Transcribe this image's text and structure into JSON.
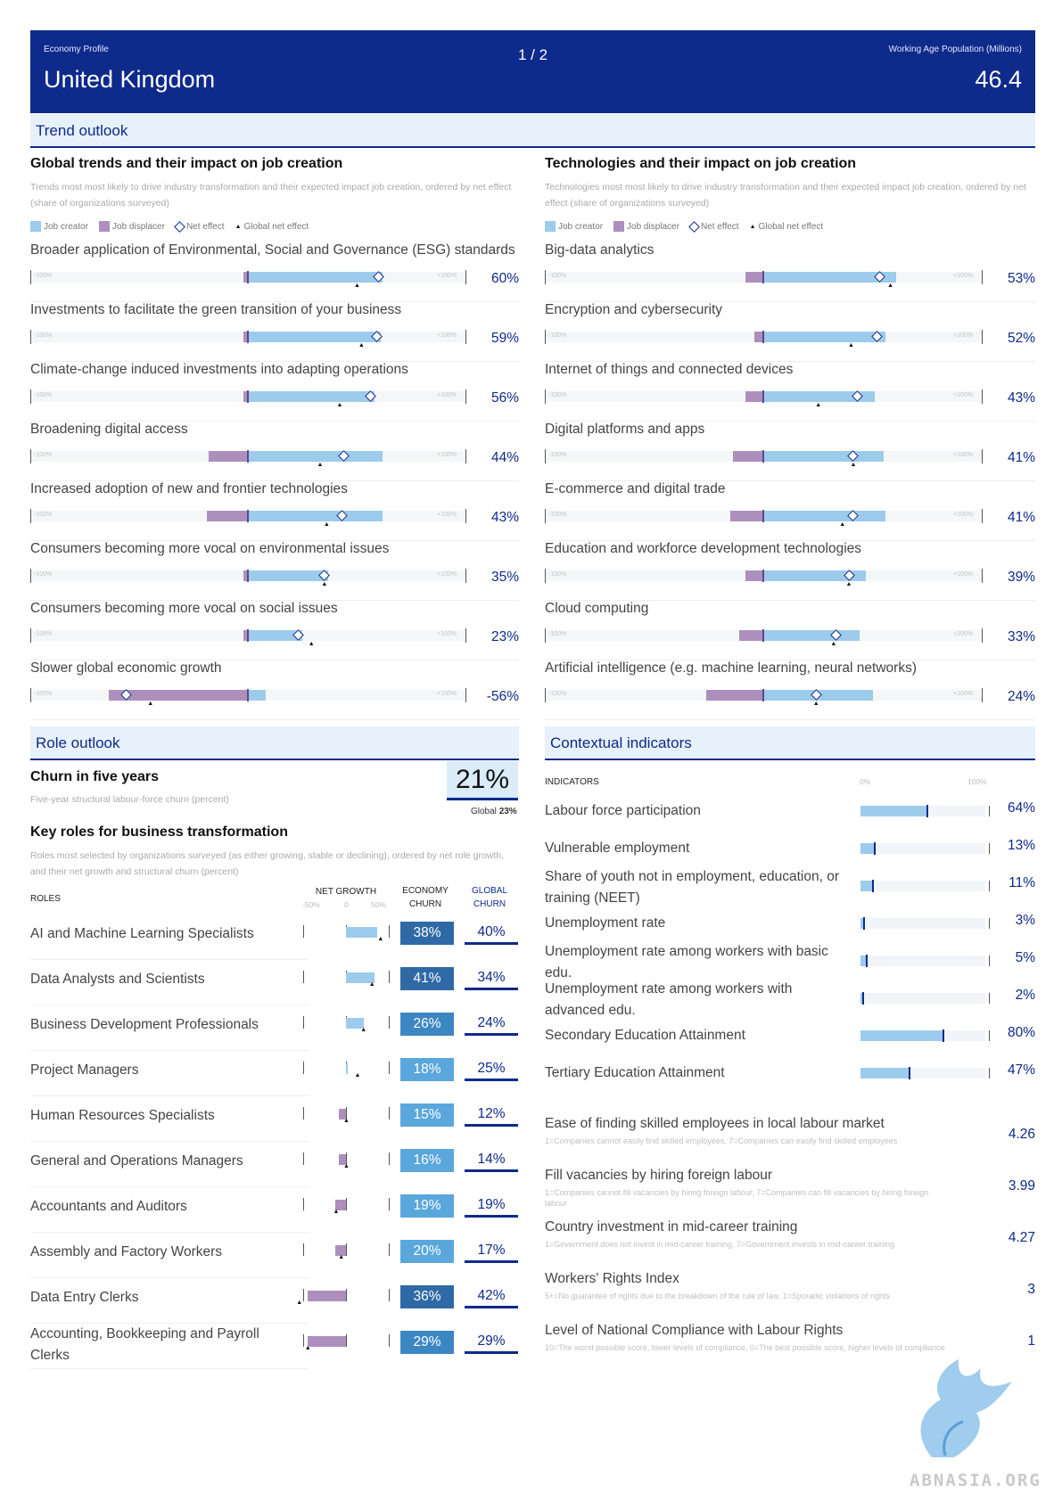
{
  "header": {
    "eyebrow_left": "Economy Profile",
    "country": "United Kingdom",
    "page": "1 / 2",
    "eyebrow_right": "Working Age Population (Millions)",
    "population": "46.4"
  },
  "trend_outlook": {
    "title": "Trend outlook"
  },
  "legend": {
    "creator": "Job creator",
    "displacer": "Job displacer",
    "net": "Net effect",
    "global": "Global net effect"
  },
  "axis": {
    "min": "-100%",
    "max": "+100%"
  },
  "trends": {
    "title": "Global trends and their impact on job creation",
    "subtitle": "Trends most most likely to drive industry transformation and their expected impact job creation, ordered by net effect (share of organizations surveyed)",
    "items": [
      {
        "label": "Broader application of Environmental, Social and Governance (ESG) standards",
        "value": "60%",
        "displacer": 0.02,
        "creator": 0.62,
        "net": 0.6,
        "global": 0.5
      },
      {
        "label": "Investments to facilitate the green transition of your business",
        "value": "59%",
        "displacer": 0.02,
        "creator": 0.61,
        "net": 0.59,
        "global": 0.52
      },
      {
        "label": "Climate-change induced investments into adapting operations",
        "value": "56%",
        "displacer": 0.02,
        "creator": 0.58,
        "net": 0.56,
        "global": 0.42
      },
      {
        "label": "Broadening digital access",
        "value": "44%",
        "displacer": 0.18,
        "creator": 0.62,
        "net": 0.44,
        "global": 0.33
      },
      {
        "label": "Increased adoption of new and frontier technologies",
        "value": "43%",
        "displacer": 0.19,
        "creator": 0.62,
        "net": 0.43,
        "global": 0.36
      },
      {
        "label": "Consumers becoming more vocal on environmental issues",
        "value": "35%",
        "displacer": 0.02,
        "creator": 0.37,
        "net": 0.35,
        "global": 0.35
      },
      {
        "label": "Consumers becoming more vocal on social issues",
        "value": "23%",
        "displacer": 0.02,
        "creator": 0.25,
        "net": 0.23,
        "global": 0.29
      },
      {
        "label": "Slower global economic growth",
        "value": "-56%",
        "displacer": 0.64,
        "creator": 0.08,
        "net": -0.56,
        "global": -0.45
      }
    ]
  },
  "technologies": {
    "title": "Technologies and their impact on job creation",
    "subtitle": "Technologies most most likely to drive industry transformation and their expected impact job creation, ordered by net effect (share of organizations surveyed)",
    "items": [
      {
        "label": "Big-data analytics",
        "value": "53%",
        "displacer": 0.08,
        "creator": 0.61,
        "net": 0.53,
        "global": 0.58
      },
      {
        "label": "Encryption and cybersecurity",
        "value": "52%",
        "displacer": 0.04,
        "creator": 0.56,
        "net": 0.52,
        "global": 0.4
      },
      {
        "label": "Internet of things and connected devices",
        "value": "43%",
        "displacer": 0.08,
        "creator": 0.51,
        "net": 0.43,
        "global": 0.25
      },
      {
        "label": "Digital platforms and apps",
        "value": "41%",
        "displacer": 0.14,
        "creator": 0.55,
        "net": 0.41,
        "global": 0.41
      },
      {
        "label": "E-commerce and digital trade",
        "value": "41%",
        "displacer": 0.15,
        "creator": 0.56,
        "net": 0.41,
        "global": 0.36
      },
      {
        "label": "Education and workforce development technologies",
        "value": "39%",
        "displacer": 0.08,
        "creator": 0.47,
        "net": 0.39,
        "global": 0.39
      },
      {
        "label": "Cloud computing",
        "value": "33%",
        "displacer": 0.11,
        "creator": 0.44,
        "net": 0.33,
        "global": 0.32
      },
      {
        "label": "Artificial intelligence (e.g. machine learning, neural networks)",
        "value": "24%",
        "displacer": 0.26,
        "creator": 0.5,
        "net": 0.24,
        "global": 0.24
      }
    ]
  },
  "role_outlook": {
    "title": "Role outlook",
    "churn_title": "Churn in five years",
    "churn_subtitle": "Five-year structural labour-force churn (percent)",
    "churn_value": "21%",
    "churn_global_label": "Global",
    "churn_global_value": "23%",
    "key_roles_title": "Key roles for business transformation",
    "key_roles_subtitle": "Roles most selected by organizations surveyed (as either growing, stable or declining), ordered by net role growth, and their net growth and structural churn (percent)",
    "col_roles": "ROLES",
    "col_net_growth": "NET GROWTH",
    "col_economy_churn_1": "ECONOMY",
    "col_economy_churn_2": "CHURN",
    "col_global_churn_1": "GLOBAL",
    "col_global_churn_2": "CHURN",
    "axis_neg": "-50%",
    "axis_zero": "0",
    "axis_pos": "50%",
    "roles": [
      {
        "label": "AI and Machine Learning Specialists",
        "net": 0.36,
        "global_net": 0.4,
        "churn": "38%",
        "global": "40%",
        "churn_num": 38
      },
      {
        "label": "Data Analysts and Scientists",
        "net": 0.33,
        "global_net": 0.3,
        "churn": "41%",
        "global": "34%",
        "churn_num": 41
      },
      {
        "label": "Business Development Professionals",
        "net": 0.21,
        "global_net": 0.2,
        "churn": "26%",
        "global": "24%",
        "churn_num": 26
      },
      {
        "label": "Project Managers",
        "net": 0.02,
        "global_net": 0.13,
        "churn": "18%",
        "global": "25%",
        "churn_num": 18
      },
      {
        "label": "Human Resources Specialists",
        "net": -0.08,
        "global_net": 0.0,
        "churn": "15%",
        "global": "12%",
        "churn_num": 15
      },
      {
        "label": "General and Operations Managers",
        "net": -0.08,
        "global_net": 0.0,
        "churn": "16%",
        "global": "14%",
        "churn_num": 16
      },
      {
        "label": "Accountants and Auditors",
        "net": -0.12,
        "global_net": -0.12,
        "churn": "19%",
        "global": "19%",
        "churn_num": 19
      },
      {
        "label": "Assembly and Factory Workers",
        "net": -0.13,
        "global_net": -0.06,
        "churn": "20%",
        "global": "17%",
        "churn_num": 20
      },
      {
        "label": "Data Entry Clerks",
        "net": -0.45,
        "global_net": -0.55,
        "churn": "36%",
        "global": "42%",
        "churn_num": 36
      },
      {
        "label": "Accounting, Bookkeeping and Payroll Clerks",
        "net": -0.45,
        "global_net": -0.45,
        "churn": "29%",
        "global": "29%",
        "churn_num": 29
      }
    ]
  },
  "contextual": {
    "title": "Contextual indicators",
    "col_indicators": "INDICATORS",
    "axis_min": "0%",
    "axis_max": "100%",
    "indicators": [
      {
        "label": "Labour force participation",
        "value": "64%",
        "num": 64
      },
      {
        "label": "Vulnerable employment",
        "value": "13%",
        "num": 13
      },
      {
        "label": "Share of youth not in employment, education, or training (NEET)",
        "value": "11%",
        "num": 11
      },
      {
        "label": "Unemployment rate",
        "value": "3%",
        "num": 3
      },
      {
        "label": "Unemployment rate among workers with basic edu.",
        "value": "5%",
        "num": 5
      },
      {
        "label": "Unemployment rate among workers with advanced edu.",
        "value": "2%",
        "num": 2
      },
      {
        "label": "Secondary Education Attainment",
        "value": "80%",
        "num": 80
      },
      {
        "label": "Tertiary Education Attainment",
        "value": "47%",
        "num": 47
      }
    ],
    "scores": [
      {
        "label": "Ease of finding skilled employees in local labour market",
        "desc": "1=Companies cannot easily find skilled employees, 7=Companies can easily find skilled employees",
        "value": "4.26"
      },
      {
        "label": "Fill vacancies by hiring foreign labour",
        "desc": "1=Companies cannot fill vacancies by hiring foreign labour, 7=Companies can fill vacancies by hiring foreign labour",
        "value": "3.99"
      },
      {
        "label": "Country investment in mid-career training",
        "desc": "1=Government does not invest in mid-career training, 7=Government invests in mid-career training",
        "value": "4.27"
      },
      {
        "label": "Workers' Rights Index",
        "desc": "5+=No guarantee of rights due to the breakdown of the rule of law, 1=Sporadic violations of rights",
        "value": "3"
      },
      {
        "label": "Level of National Compliance with Labour Rights",
        "desc": "10=The worst possible score, lower levels of compliance, 0=The best possible score, higher levels of compliance",
        "value": "1"
      }
    ]
  },
  "watermark": "ABNASIA.ORG",
  "colors": {
    "navy": "#0e2a8a",
    "creator": "#9ccbec",
    "displacer": "#ad8fbd",
    "panel": "#e6f1fb"
  }
}
